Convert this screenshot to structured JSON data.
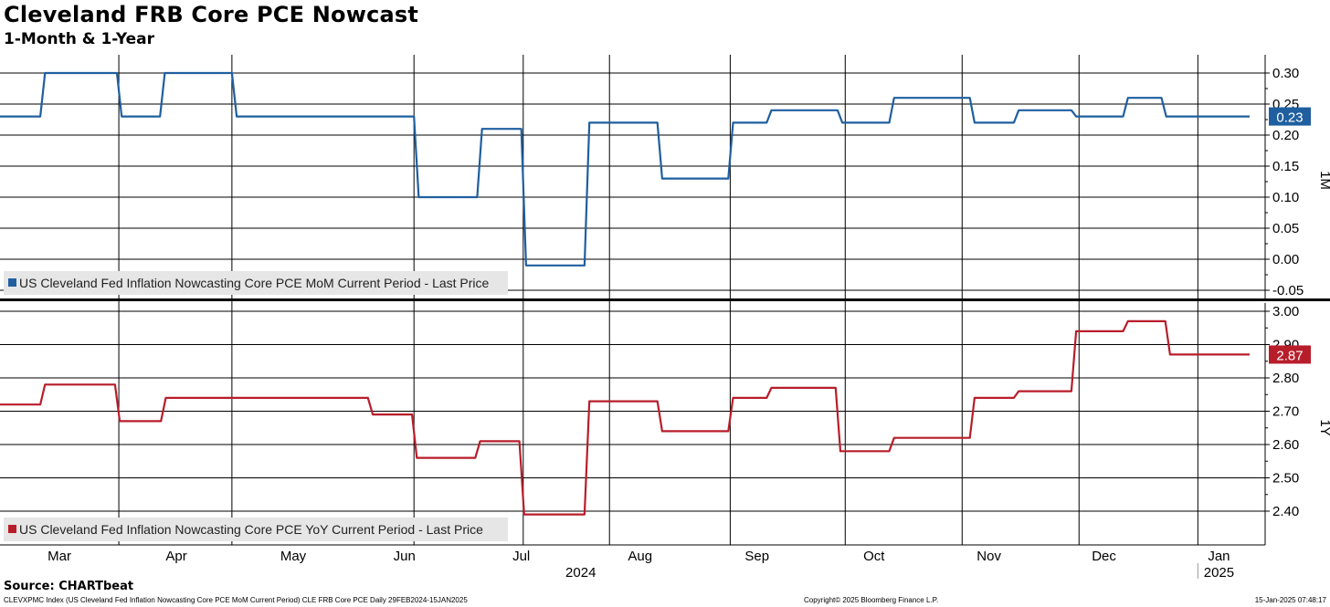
{
  "header": {
    "title": "Cleveland FRB Core PCE Nowcast",
    "subtitle": "1-Month & 1-Year"
  },
  "footer": {
    "source": "Source: CHARTbeat",
    "index_info": "CLEVXPMC Index (US Cleveland Fed Inflation Nowcasting Core PCE MoM Current Period) CLE FRB Core PCE  Daily 29FEB2024-15JAN2025",
    "copyright": "Copyright© 2025 Bloomberg Finance L.P.",
    "timestamp": "15-Jan-2025 07:48:17"
  },
  "chart_data": [
    {
      "type": "line",
      "panel_label": "1M",
      "legend": "US Cleveland Fed Inflation Nowcasting Core PCE MoM Current Period - Last Price",
      "color": "#1f5fa0",
      "ylim": [
        -0.065,
        0.33
      ],
      "yticks": [
        "0.30",
        "0.25",
        "0.20",
        "0.15",
        "0.10",
        "0.05",
        "0.00",
        "-0.05"
      ],
      "last_value": "0.23",
      "points": [
        [
          0,
          0.23
        ],
        [
          2.1,
          0.23
        ],
        [
          2.35,
          0.3
        ],
        [
          6.1,
          0.3
        ],
        [
          6.35,
          0.23
        ],
        [
          8.35,
          0.23
        ],
        [
          8.6,
          0.3
        ],
        [
          12.1,
          0.3
        ],
        [
          12.35,
          0.23
        ],
        [
          21.6,
          0.23
        ],
        [
          21.85,
          0.1
        ],
        [
          24.9,
          0.1
        ],
        [
          25.15,
          0.21
        ],
        [
          27.2,
          0.21
        ],
        [
          27.45,
          -0.01
        ],
        [
          30.5,
          -0.01
        ],
        [
          30.75,
          0.22
        ],
        [
          34.3,
          0.22
        ],
        [
          34.55,
          0.13
        ],
        [
          38.0,
          0.13
        ],
        [
          38.25,
          0.22
        ],
        [
          40.0,
          0.22
        ],
        [
          40.25,
          0.24
        ],
        [
          43.7,
          0.24
        ],
        [
          43.95,
          0.22
        ],
        [
          46.4,
          0.22
        ],
        [
          46.65,
          0.26
        ],
        [
          50.6,
          0.26
        ],
        [
          50.85,
          0.22
        ],
        [
          52.9,
          0.22
        ],
        [
          53.15,
          0.24
        ],
        [
          55.9,
          0.24
        ],
        [
          56.15,
          0.23
        ],
        [
          58.6,
          0.23
        ],
        [
          58.85,
          0.26
        ],
        [
          60.6,
          0.26
        ],
        [
          60.85,
          0.23
        ],
        [
          65.2,
          0.23
        ]
      ]
    },
    {
      "type": "line",
      "panel_label": "1Y",
      "legend": "US Cleveland Fed Inflation Nowcasting Core PCE YoY Current Period - Last Price",
      "color": "#b81d2a",
      "ylim": [
        2.3,
        3.0
      ],
      "yticks": [
        "3.00",
        "2.90",
        "2.80",
        "2.70",
        "2.60",
        "2.50",
        "2.40"
      ],
      "last_value": "2.87",
      "points": [
        [
          0,
          2.72
        ],
        [
          2.1,
          2.72
        ],
        [
          2.35,
          2.78
        ],
        [
          6.0,
          2.78
        ],
        [
          6.25,
          2.67
        ],
        [
          8.4,
          2.67
        ],
        [
          8.65,
          2.74
        ],
        [
          19.2,
          2.74
        ],
        [
          19.45,
          2.69
        ],
        [
          21.5,
          2.69
        ],
        [
          21.75,
          2.56
        ],
        [
          24.8,
          2.56
        ],
        [
          25.05,
          2.61
        ],
        [
          27.1,
          2.61
        ],
        [
          27.35,
          2.39
        ],
        [
          30.5,
          2.39
        ],
        [
          30.75,
          2.73
        ],
        [
          34.3,
          2.73
        ],
        [
          34.55,
          2.64
        ],
        [
          38.0,
          2.64
        ],
        [
          38.25,
          2.74
        ],
        [
          40.0,
          2.74
        ],
        [
          40.25,
          2.77
        ],
        [
          43.6,
          2.77
        ],
        [
          43.85,
          2.58
        ],
        [
          46.4,
          2.58
        ],
        [
          46.65,
          2.62
        ],
        [
          50.6,
          2.62
        ],
        [
          50.85,
          2.74
        ],
        [
          52.9,
          2.74
        ],
        [
          53.15,
          2.76
        ],
        [
          55.9,
          2.76
        ],
        [
          56.15,
          2.94
        ],
        [
          58.6,
          2.94
        ],
        [
          58.85,
          2.97
        ],
        [
          60.8,
          2.97
        ],
        [
          61.05,
          2.87
        ],
        [
          65.2,
          2.87
        ]
      ]
    }
  ],
  "x_axis": {
    "weeks_range": [
      0,
      65.2
    ],
    "month_boundaries": [
      0,
      6.2,
      12.1,
      21.6,
      27.3,
      31.8,
      38.1,
      44.1,
      50.2,
      56.3,
      62.5
    ],
    "month_labels": [
      {
        "label": "Mar",
        "week": 3.1
      },
      {
        "label": "Apr",
        "week": 9.2
      },
      {
        "label": "May",
        "week": 15.3
      },
      {
        "label": "Jun",
        "week": 21.1
      },
      {
        "label": "Jul",
        "week": 27.2
      },
      {
        "label": "Aug",
        "week": 33.4
      },
      {
        "label": "Sep",
        "week": 39.5
      },
      {
        "label": "Oct",
        "week": 45.6
      },
      {
        "label": "Nov",
        "week": 51.6
      },
      {
        "label": "Dec",
        "week": 57.6
      },
      {
        "label": "Jan",
        "week": 63.6
      }
    ],
    "year_labels": [
      {
        "label": "2024",
        "week": 30.3
      },
      {
        "label": "2025",
        "week": 63.6
      }
    ],
    "year_divider_week": 62.5
  }
}
